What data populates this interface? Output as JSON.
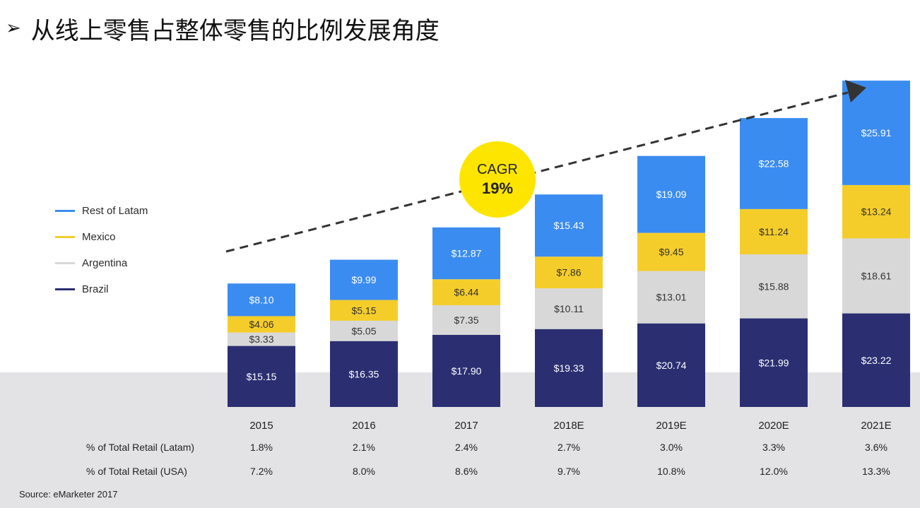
{
  "heading": {
    "arrow": "➢",
    "text": "从线上零售占整体零售的比例发展角度"
  },
  "cagr": {
    "label": "CAGR",
    "value": "19%"
  },
  "colors": {
    "rest_of_latam": "#3b8cf0",
    "mexico": "#f5cd2a",
    "argentina": "#d8d8d8",
    "brazil": "#2b2f72",
    "cagr_circle": "#fde500",
    "band": "#e3e3e5"
  },
  "legend": [
    {
      "label": "Rest of Latam",
      "color": "#3b8cf0"
    },
    {
      "label": "Mexico",
      "color": "#f5cd2a"
    },
    {
      "label": "Argentina",
      "color": "#d8d8d8"
    },
    {
      "label": "Brazil",
      "color": "#2b2f72"
    }
  ],
  "chart_data": {
    "type": "bar",
    "stacked": true,
    "categories": [
      "2015",
      "2016",
      "2017",
      "2018E",
      "2019E",
      "2020E",
      "2021E"
    ],
    "series": [
      {
        "name": "Brazil",
        "values": [
          15.15,
          16.35,
          17.9,
          19.33,
          20.74,
          21.99,
          23.22
        ],
        "labels": [
          "$15.15",
          "$16.35",
          "$17.90",
          "$19.33",
          "$20.74",
          "$21.99",
          "$23.22"
        ]
      },
      {
        "name": "Argentina",
        "values": [
          3.33,
          5.05,
          7.35,
          10.11,
          13.01,
          15.88,
          18.61
        ],
        "labels": [
          "$3.33",
          "$5.05",
          "$7.35",
          "$10.11",
          "$13.01",
          "$15.88",
          "$18.61"
        ]
      },
      {
        "name": "Mexico",
        "values": [
          4.06,
          5.15,
          6.44,
          7.86,
          9.45,
          11.24,
          13.24
        ],
        "labels": [
          "$4.06",
          "$5.15",
          "$6.44",
          "$7.86",
          "$9.45",
          "$11.24",
          "$13.24"
        ]
      },
      {
        "name": "Rest of Latam",
        "values": [
          8.1,
          9.99,
          12.87,
          15.43,
          19.09,
          22.58,
          25.91
        ],
        "labels": [
          "$8.10",
          "$9.99",
          "$12.87",
          "$15.43",
          "$19.09",
          "$22.58",
          "$25.91"
        ]
      }
    ],
    "ylim": [
      0,
      81
    ],
    "grid": false,
    "legend_position": "left"
  },
  "table": {
    "rows": [
      {
        "label": "% of Total Retail (Latam)",
        "values": [
          "1.8%",
          "2.1%",
          "2.4%",
          "2.7%",
          "3.0%",
          "3.3%",
          "3.6%"
        ]
      },
      {
        "label": "% of Total Retail (USA)",
        "values": [
          "7.2%",
          "8.0%",
          "8.6%",
          "9.7%",
          "10.8%",
          "12.0%",
          "13.3%"
        ]
      }
    ]
  },
  "source": "Source: eMarketer 2017"
}
